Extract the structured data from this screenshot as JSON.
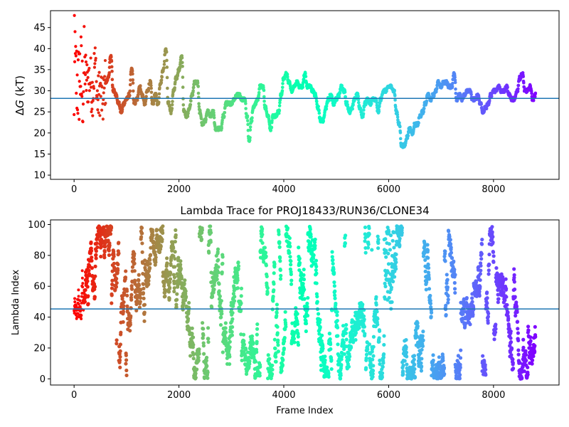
{
  "chart_data": [
    {
      "type": "scatter",
      "title": "",
      "xlabel": "",
      "ylabel": "ΔG (kT)",
      "ylabel_delta": "Δ",
      "ylabel_symbol": "G",
      "ylabel_unit": " (kT)",
      "xlim": [
        -450,
        9250
      ],
      "ylim": [
        9,
        49
      ],
      "xticks": [
        0,
        2000,
        4000,
        6000,
        8000
      ],
      "xtick_labels": [
        "0",
        "2000",
        "4000",
        "6000",
        "8000"
      ],
      "yticks": [
        10,
        15,
        20,
        25,
        30,
        35,
        40,
        45
      ],
      "ytick_labels": [
        "10",
        "15",
        "20",
        "25",
        "30",
        "35",
        "40",
        "45"
      ],
      "hline": 28.2,
      "colormap": "rainbow (red at frame 0 to violet at frame 8800)",
      "line_color": "#1f77b4",
      "x_max": 8800,
      "trace": [
        [
          0,
          38
        ],
        [
          40,
          33
        ],
        [
          80,
          31
        ],
        [
          120,
          34
        ],
        [
          160,
          30
        ],
        [
          200,
          35
        ],
        [
          250,
          32
        ],
        [
          300,
          33
        ],
        [
          350,
          30
        ],
        [
          400,
          36
        ],
        [
          450,
          28
        ],
        [
          500,
          30
        ],
        [
          550,
          27
        ],
        [
          600,
          32
        ],
        [
          650,
          33
        ],
        [
          700,
          38
        ],
        [
          750,
          30
        ],
        [
          800,
          29
        ],
        [
          850,
          27
        ],
        [
          900,
          25
        ],
        [
          950,
          27
        ],
        [
          1000,
          28
        ],
        [
          1050,
          29
        ],
        [
          1100,
          35
        ],
        [
          1150,
          27
        ],
        [
          1200,
          28
        ],
        [
          1250,
          31
        ],
        [
          1300,
          29
        ],
        [
          1350,
          27
        ],
        [
          1400,
          30
        ],
        [
          1450,
          32
        ],
        [
          1500,
          27
        ],
        [
          1550,
          29
        ],
        [
          1600,
          27
        ],
        [
          1650,
          32
        ],
        [
          1700,
          35
        ],
        [
          1750,
          40
        ],
        [
          1800,
          27
        ],
        [
          1850,
          25
        ],
        [
          1900,
          30
        ],
        [
          1950,
          33
        ],
        [
          2000,
          35
        ],
        [
          2050,
          38
        ],
        [
          2100,
          25
        ],
        [
          2150,
          24
        ],
        [
          2200,
          26
        ],
        [
          2250,
          29
        ],
        [
          2300,
          32
        ],
        [
          2350,
          32
        ],
        [
          2400,
          25
        ],
        [
          2450,
          22
        ],
        [
          2500,
          23
        ],
        [
          2550,
          25
        ],
        [
          2600,
          24
        ],
        [
          2650,
          25
        ],
        [
          2700,
          21
        ],
        [
          2750,
          21
        ],
        [
          2800,
          21
        ],
        [
          2850,
          24
        ],
        [
          2900,
          27
        ],
        [
          2950,
          27
        ],
        [
          3000,
          27
        ],
        [
          3050,
          28
        ],
        [
          3100,
          29
        ],
        [
          3150,
          29
        ],
        [
          3200,
          28
        ],
        [
          3250,
          28
        ],
        [
          3300,
          24
        ],
        [
          3340,
          18
        ],
        [
          3380,
          23
        ],
        [
          3420,
          26
        ],
        [
          3460,
          27
        ],
        [
          3500,
          28
        ],
        [
          3550,
          31
        ],
        [
          3600,
          31
        ],
        [
          3650,
          26
        ],
        [
          3700,
          24
        ],
        [
          3750,
          21
        ],
        [
          3800,
          24
        ],
        [
          3850,
          24
        ],
        [
          3900,
          25
        ],
        [
          3950,
          29
        ],
        [
          4000,
          33
        ],
        [
          4050,
          34
        ],
        [
          4100,
          32
        ],
        [
          4150,
          30
        ],
        [
          4200,
          31
        ],
        [
          4250,
          32
        ],
        [
          4300,
          31
        ],
        [
          4350,
          31
        ],
        [
          4400,
          34
        ],
        [
          4450,
          31
        ],
        [
          4500,
          31
        ],
        [
          4550,
          30
        ],
        [
          4600,
          29
        ],
        [
          4650,
          26
        ],
        [
          4700,
          23
        ],
        [
          4750,
          23
        ],
        [
          4800,
          26
        ],
        [
          4850,
          28
        ],
        [
          4900,
          29
        ],
        [
          4950,
          27
        ],
        [
          5000,
          28
        ],
        [
          5050,
          29
        ],
        [
          5100,
          31
        ],
        [
          5150,
          30
        ],
        [
          5200,
          27
        ],
        [
          5250,
          25
        ],
        [
          5300,
          26
        ],
        [
          5350,
          28
        ],
        [
          5400,
          29
        ],
        [
          5450,
          26
        ],
        [
          5500,
          24
        ],
        [
          5550,
          27
        ],
        [
          5600,
          28
        ],
        [
          5650,
          27
        ],
        [
          5700,
          28
        ],
        [
          5750,
          28
        ],
        [
          5800,
          25
        ],
        [
          5850,
          28
        ],
        [
          5900,
          30
        ],
        [
          5950,
          30
        ],
        [
          6000,
          31
        ],
        [
          6050,
          31
        ],
        [
          6100,
          30
        ],
        [
          6150,
          25
        ],
        [
          6200,
          22
        ],
        [
          6250,
          17
        ],
        [
          6300,
          17
        ],
        [
          6350,
          19
        ],
        [
          6400,
          21
        ],
        [
          6450,
          20
        ],
        [
          6500,
          22
        ],
        [
          6550,
          22
        ],
        [
          6600,
          24
        ],
        [
          6650,
          25
        ],
        [
          6700,
          27
        ],
        [
          6750,
          29
        ],
        [
          6800,
          28
        ],
        [
          6850,
          29
        ],
        [
          6900,
          30
        ],
        [
          6950,
          32
        ],
        [
          7000,
          31
        ],
        [
          7050,
          32
        ],
        [
          7100,
          32
        ],
        [
          7150,
          31
        ],
        [
          7200,
          31
        ],
        [
          7250,
          34
        ],
        [
          7300,
          28
        ],
        [
          7350,
          29
        ],
        [
          7400,
          28
        ],
        [
          7450,
          29
        ],
        [
          7500,
          30
        ],
        [
          7550,
          30
        ],
        [
          7600,
          28
        ],
        [
          7650,
          28
        ],
        [
          7700,
          29
        ],
        [
          7750,
          27
        ],
        [
          7800,
          25
        ],
        [
          7850,
          26
        ],
        [
          7900,
          27
        ],
        [
          7950,
          29
        ],
        [
          8000,
          30
        ],
        [
          8050,
          30
        ],
        [
          8100,
          31
        ],
        [
          8150,
          30
        ],
        [
          8200,
          30
        ],
        [
          8250,
          31
        ],
        [
          8300,
          29
        ],
        [
          8350,
          28
        ],
        [
          8400,
          28
        ],
        [
          8450,
          30
        ],
        [
          8500,
          33
        ],
        [
          8550,
          34
        ],
        [
          8600,
          30
        ],
        [
          8650,
          30
        ],
        [
          8700,
          31
        ],
        [
          8750,
          28
        ],
        [
          8800,
          29
        ]
      ]
    },
    {
      "type": "scatter",
      "title": "Lambda Trace for PROJ18433/RUN36/CLONE34",
      "xlabel": "Frame Index",
      "ylabel": "Lambda Index",
      "xlim": [
        -450,
        9250
      ],
      "ylim": [
        -4,
        103
      ],
      "xticks": [
        0,
        2000,
        4000,
        6000,
        8000
      ],
      "xtick_labels": [
        "0",
        "2000",
        "4000",
        "6000",
        "8000"
      ],
      "yticks": [
        0,
        20,
        40,
        60,
        80,
        100
      ],
      "ytick_labels": [
        "0",
        "20",
        "40",
        "60",
        "80",
        "100"
      ],
      "hline": 45.3,
      "colormap": "rainbow (red at frame 0 to violet at frame 8800)",
      "line_color": "#1f77b4",
      "x_max": 8800,
      "lambda_range": [
        0,
        99
      ],
      "gap_regions": [
        [
          5920,
          6100
        ]
      ]
    }
  ]
}
